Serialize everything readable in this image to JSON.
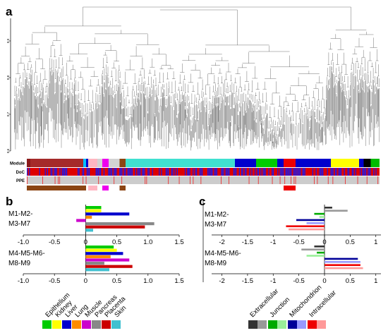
{
  "panel_a": {
    "label": "a",
    "y_ticks": [
      {
        "label": "0.9",
        "value": 0.9
      },
      {
        "label": "0.8",
        "value": 0.8
      },
      {
        "label": "0.7",
        "value": 0.7
      },
      {
        "label": "0.6",
        "value": 0.6
      }
    ],
    "track_labels": [
      "Module",
      "DoC",
      "PPE"
    ],
    "module_blocks": [
      {
        "from": 0.0,
        "to": 0.01,
        "color": "#8b1a1a"
      },
      {
        "from": 0.01,
        "to": 0.16,
        "color": "#a52a2a"
      },
      {
        "from": 0.16,
        "to": 0.168,
        "color": "#00bfff"
      },
      {
        "from": 0.168,
        "to": 0.174,
        "color": "#0000cd"
      },
      {
        "from": 0.174,
        "to": 0.2,
        "color": "#ffb6c1"
      },
      {
        "from": 0.2,
        "to": 0.214,
        "color": "#d3d3d3"
      },
      {
        "from": 0.214,
        "to": 0.232,
        "color": "#ee00ee"
      },
      {
        "from": 0.232,
        "to": 0.263,
        "color": "#d3d3d3"
      },
      {
        "from": 0.263,
        "to": 0.28,
        "color": "#8b4513"
      },
      {
        "from": 0.28,
        "to": 0.59,
        "color": "#40e0d0"
      },
      {
        "from": 0.59,
        "to": 0.65,
        "color": "#0000cd"
      },
      {
        "from": 0.65,
        "to": 0.71,
        "color": "#00cc00"
      },
      {
        "from": 0.71,
        "to": 0.728,
        "color": "#0000cd"
      },
      {
        "from": 0.728,
        "to": 0.762,
        "color": "#ee0000"
      },
      {
        "from": 0.762,
        "to": 0.862,
        "color": "#0000cd"
      },
      {
        "from": 0.862,
        "to": 0.942,
        "color": "#ffff00"
      },
      {
        "from": 0.942,
        "to": 0.955,
        "color": "#0000cd"
      },
      {
        "from": 0.955,
        "to": 0.975,
        "color": "#000000"
      },
      {
        "from": 0.975,
        "to": 1.0,
        "color": "#00bb00"
      }
    ],
    "ppe_blocks": [
      {
        "from": 0.0,
        "to": 0.168,
        "color": "#8b4513"
      },
      {
        "from": 0.174,
        "to": 0.2,
        "color": "#ffb6c1"
      },
      {
        "from": 0.214,
        "to": 0.232,
        "color": "#ee00ee"
      },
      {
        "from": 0.263,
        "to": 0.28,
        "color": "#8b4513"
      },
      {
        "from": 0.728,
        "to": 0.762,
        "color": "#ee0000"
      }
    ]
  },
  "panel_b": {
    "label": "b",
    "legend_title": "",
    "legend": [
      {
        "name": "Epithelium",
        "color": "#00cc00"
      },
      {
        "name": "Kidney",
        "color": "#ffff00"
      },
      {
        "name": "Liver",
        "color": "#0000cd"
      },
      {
        "name": "Lung",
        "color": "#ff8c00"
      },
      {
        "name": "Muscle",
        "color": "#cc00cc"
      },
      {
        "name": "Pancreas",
        "color": "#888888"
      },
      {
        "name": "Placenta",
        "color": "#cc0000"
      },
      {
        "name": "Skin",
        "color": "#40c0d0"
      }
    ]
  },
  "panel_c": {
    "label": "c",
    "legend": [
      {
        "name": "Extracellular",
        "colors": [
          "#333333",
          "#999999"
        ]
      },
      {
        "name": "Junction",
        "colors": [
          "#00aa00",
          "#99ee99"
        ]
      },
      {
        "name": "Mitochondrion",
        "colors": [
          "#000099",
          "#9999ff"
        ]
      },
      {
        "name": "Intracellular",
        "colors": [
          "#ee0000",
          "#ff9999"
        ]
      }
    ]
  },
  "chart_data": [
    {
      "type": "bar",
      "orientation": "horizontal",
      "panel": "b",
      "groups": [
        "M1-M2-\nM3-M7",
        "M4-M5-M6-\nM8-M9"
      ],
      "series": [
        {
          "name": "Epithelium",
          "values": [
            0.25,
            0.45
          ]
        },
        {
          "name": "Kidney",
          "values": [
            0.25,
            0.5
          ]
        },
        {
          "name": "Liver",
          "values": [
            0.7,
            0.6
          ]
        },
        {
          "name": "Lung",
          "values": [
            0.1,
            0.4
          ]
        },
        {
          "name": "Muscle",
          "values": [
            -0.15,
            0.7
          ]
        },
        {
          "name": "Pancreas",
          "values": [
            1.1,
            0.3
          ]
        },
        {
          "name": "Placenta",
          "values": [
            0.95,
            0.75
          ]
        },
        {
          "name": "Skin",
          "values": [
            0.12,
            0.38
          ]
        }
      ],
      "xlim": [
        -1.0,
        1.5
      ],
      "x_ticks": [
        "-1.0",
        "-0.5",
        "0",
        "0.5",
        "1.0",
        "1.5"
      ],
      "xlabel": "",
      "ylabel": ""
    },
    {
      "type": "bar",
      "orientation": "horizontal",
      "panel": "c",
      "groups": [
        "M1-M2-\nM3-M7",
        "M4-M5-M6-\nM8-M9"
      ],
      "series": [
        {
          "name": "Extracellular",
          "values": [
            [
              0.15,
              0.45
            ],
            [
              -0.2,
              -0.45
            ]
          ]
        },
        {
          "name": "Junction",
          "values": [
            [
              -0.2,
              -0.1
            ],
            [
              -0.15,
              -0.35
            ]
          ]
        },
        {
          "name": "Mitochondrion",
          "values": [
            [
              -0.55,
              -0.35
            ],
            [
              0.65,
              0.7
            ]
          ]
        },
        {
          "name": "Intracellular",
          "values": [
            [
              -0.75,
              -0.7
            ],
            [
              0.7,
              0.75
            ]
          ]
        }
      ],
      "xlim": [
        -2.2,
        1.1
      ],
      "x_ticks": [
        "-2",
        "-1.5",
        "-1",
        "-0.5",
        "0",
        "0.5",
        "1"
      ],
      "xlabel": "",
      "ylabel": ""
    }
  ]
}
